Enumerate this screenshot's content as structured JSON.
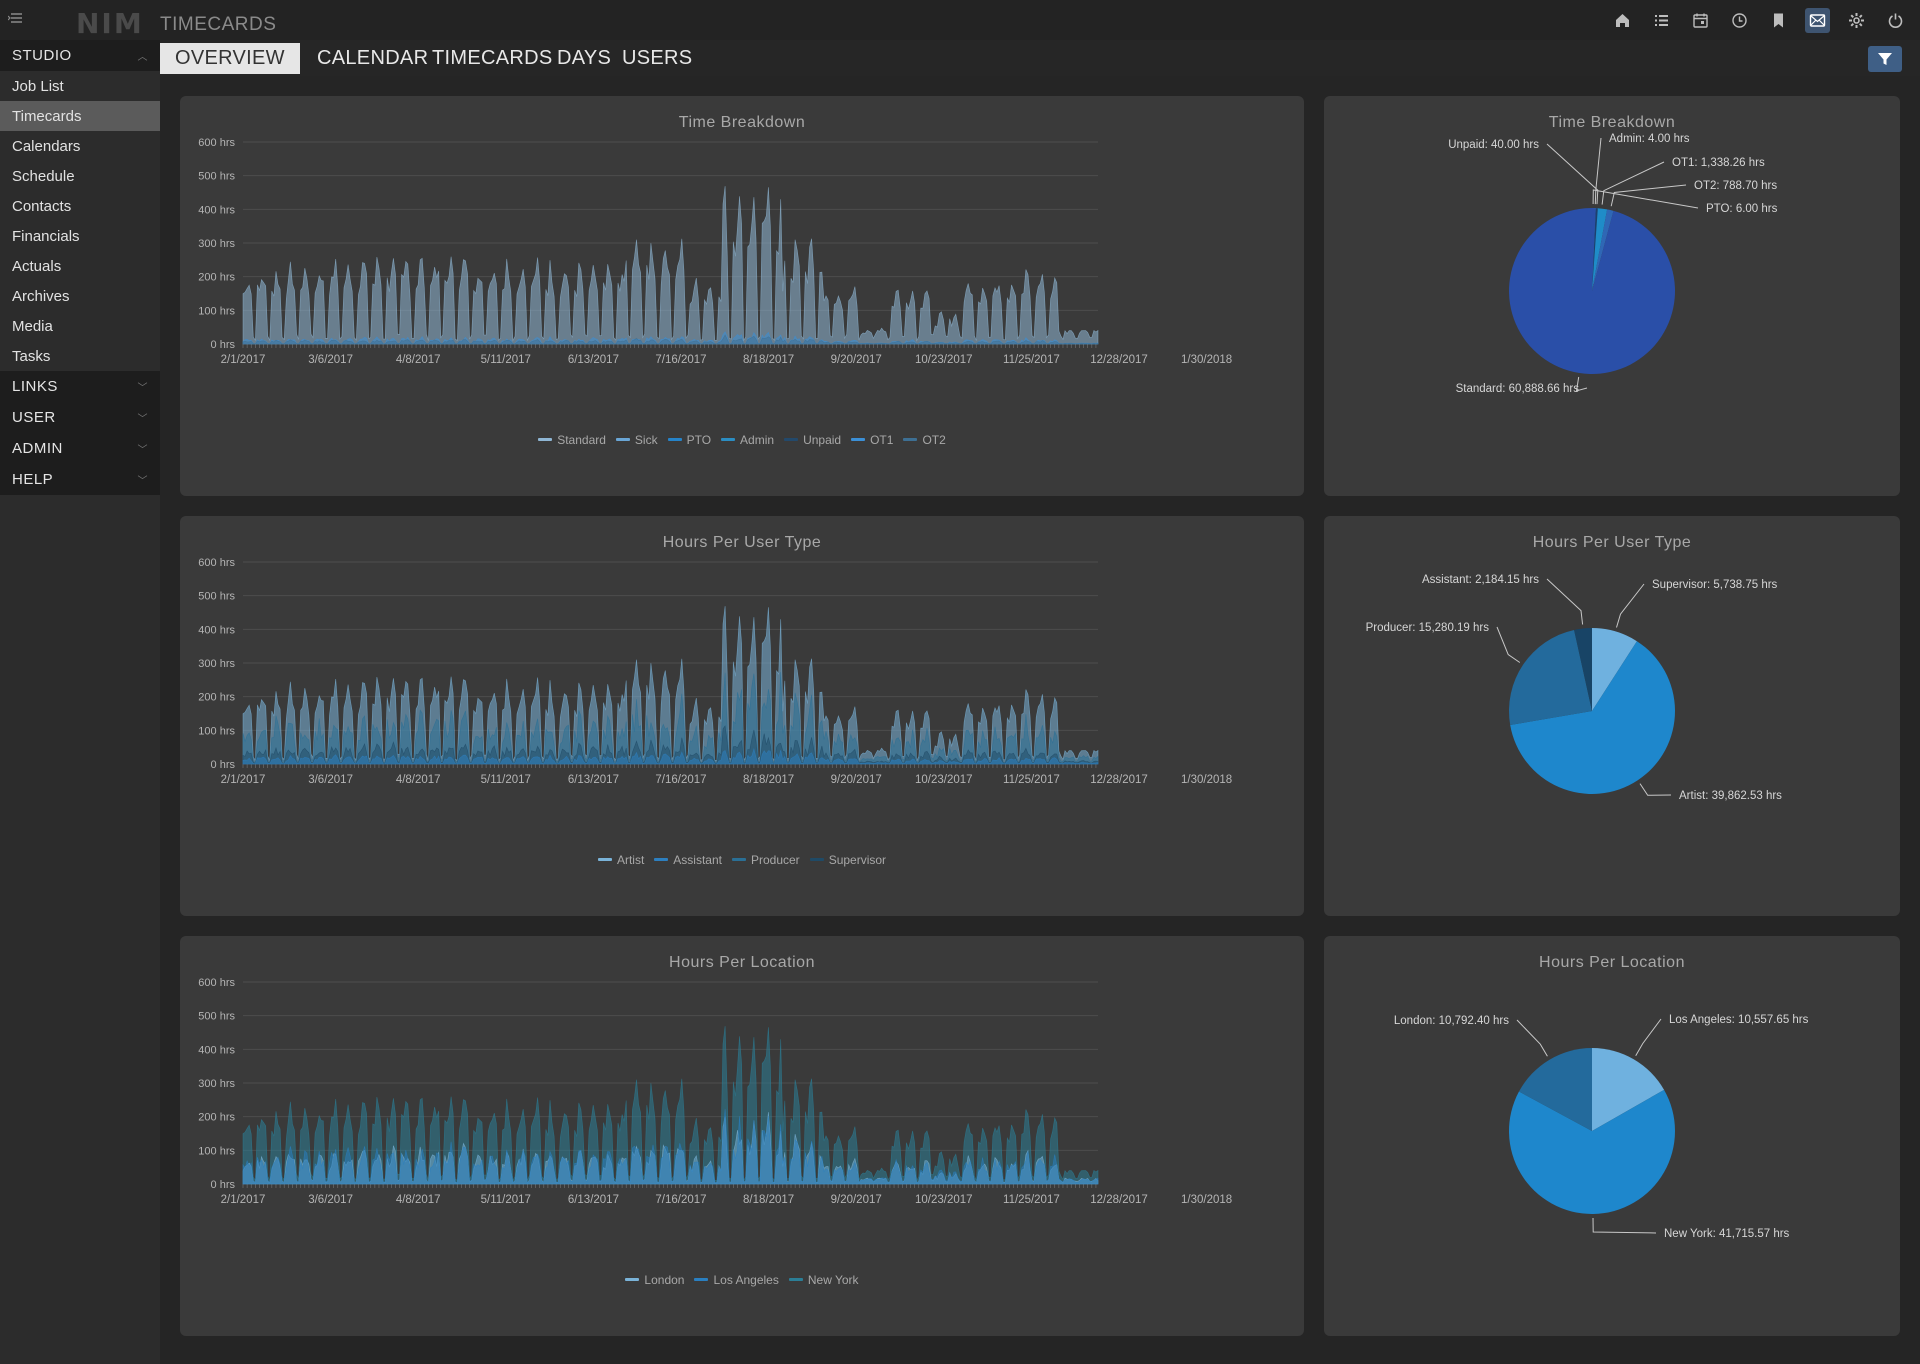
{
  "app": {
    "logo": "NIM",
    "title": "TIMECARDS",
    "menu_icon": "menu-icon"
  },
  "top_icons": [
    {
      "name": "home-icon",
      "active": false
    },
    {
      "name": "list-icon",
      "active": false
    },
    {
      "name": "calendar-icon",
      "active": false
    },
    {
      "name": "clock-icon",
      "active": false
    },
    {
      "name": "bookmark-icon",
      "active": false
    },
    {
      "name": "mail-icon",
      "active": true
    },
    {
      "name": "gear-icon",
      "active": false
    },
    {
      "name": "power-icon",
      "active": false
    }
  ],
  "sidebar": {
    "studio_label": "STUDIO",
    "items": [
      {
        "label": "Job List",
        "active": false
      },
      {
        "label": "Timecards",
        "active": true
      },
      {
        "label": "Calendars",
        "active": false
      },
      {
        "label": "Schedule",
        "active": false
      },
      {
        "label": "Contacts",
        "active": false
      },
      {
        "label": "Financials",
        "active": false
      },
      {
        "label": "Actuals",
        "active": false
      },
      {
        "label": "Archives",
        "active": false
      },
      {
        "label": "Media",
        "active": false
      },
      {
        "label": "Tasks",
        "active": false
      }
    ],
    "sections": [
      {
        "label": "LINKS"
      },
      {
        "label": "USER"
      },
      {
        "label": "ADMIN"
      },
      {
        "label": "HELP"
      }
    ]
  },
  "tabs": [
    {
      "label": "OVERVIEW",
      "active": true
    },
    {
      "label": "CALENDAR",
      "active": false
    },
    {
      "label": "TIMECARDS",
      "active": false
    },
    {
      "label": "DAYS",
      "active": false
    },
    {
      "label": "USERS",
      "active": false
    }
  ],
  "filter_icon": "filter-icon",
  "chart_data": [
    {
      "type": "area",
      "title": "Time Breakdown",
      "x_ticks": [
        "2/1/2017",
        "3/6/2017",
        "4/8/2017",
        "5/11/2017",
        "6/13/2017",
        "7/16/2017",
        "8/18/2017",
        "9/20/2017",
        "10/23/2017",
        "11/25/2017",
        "12/28/2017",
        "1/30/2018"
      ],
      "y_ticks": [
        "600 hrs",
        "500 hrs",
        "400 hrs",
        "300 hrs",
        "200 hrs",
        "100 hrs",
        "0 hrs"
      ],
      "ylim": [
        0,
        600
      ],
      "grid": true,
      "legend_position": "bottom",
      "series": [
        {
          "name": "Standard",
          "color": "#8fb6d4",
          "share": 0.95
        },
        {
          "name": "Sick",
          "color": "#6aa6d6",
          "share": 0.0
        },
        {
          "name": "PTO",
          "color": "#2583c9",
          "share": 0.0
        },
        {
          "name": "Admin",
          "color": "#2b8dc2",
          "share": 0.0
        },
        {
          "name": "Unpaid",
          "color": "#23496b",
          "share": 0.0
        },
        {
          "name": "OT1",
          "color": "#3b8fd6",
          "share": 0.03
        },
        {
          "name": "OT2",
          "color": "#3d6f93",
          "share": 0.02
        }
      ]
    },
    {
      "type": "area",
      "title": "Hours Per User Type",
      "x_ticks": [
        "2/1/2017",
        "3/6/2017",
        "4/8/2017",
        "5/11/2017",
        "6/13/2017",
        "7/16/2017",
        "8/18/2017",
        "9/20/2017",
        "10/23/2017",
        "11/25/2017",
        "12/28/2017",
        "1/30/2018"
      ],
      "y_ticks": [
        "600 hrs",
        "500 hrs",
        "400 hrs",
        "300 hrs",
        "200 hrs",
        "100 hrs",
        "0 hrs"
      ],
      "ylim": [
        0,
        600
      ],
      "grid": true,
      "legend_position": "bottom",
      "series": [
        {
          "name": "Artist",
          "color": "#7ab3d8",
          "share": 0.63
        },
        {
          "name": "Assistant",
          "color": "#2d7fbf",
          "share": 0.04
        },
        {
          "name": "Producer",
          "color": "#2a6f95",
          "share": 0.24
        },
        {
          "name": "Supervisor",
          "color": "#1f4a66",
          "share": 0.09
        }
      ]
    },
    {
      "type": "area",
      "title": "Hours Per Location",
      "x_ticks": [
        "2/1/2017",
        "3/6/2017",
        "4/8/2017",
        "5/11/2017",
        "6/13/2017",
        "7/16/2017",
        "8/18/2017",
        "9/20/2017",
        "10/23/2017",
        "11/25/2017",
        "12/28/2017",
        "1/30/2018"
      ],
      "y_ticks": [
        "600 hrs",
        "500 hrs",
        "400 hrs",
        "300 hrs",
        "200 hrs",
        "100 hrs",
        "0 hrs"
      ],
      "ylim": [
        0,
        600
      ],
      "grid": true,
      "legend_position": "bottom",
      "series": [
        {
          "name": "London",
          "color": "#7ab3d8",
          "share": 0.17
        },
        {
          "name": "Los Angeles",
          "color": "#2a7fc0",
          "share": 0.17
        },
        {
          "name": "New York",
          "color": "#2b7e96",
          "share": 0.66
        }
      ]
    },
    {
      "type": "pie",
      "title": "Time Breakdown",
      "slices": [
        {
          "label": "Standard: 60,888.66 hrs",
          "value": 60888.66,
          "color": "#2a4fa8"
        },
        {
          "label": "Unpaid: 40.00 hrs",
          "value": 40.0,
          "color": "#1e3f6e"
        },
        {
          "label": "Admin: 4.00 hrs",
          "value": 4.0,
          "color": "#2b8dc2"
        },
        {
          "label": "OT1: 1,338.26 hrs",
          "value": 1338.26,
          "color": "#1f8cc8"
        },
        {
          "label": "OT2: 788.70 hrs",
          "value": 788.7,
          "color": "#2f67b5"
        },
        {
          "label": "PTO: 6.00 hrs",
          "value": 6.0,
          "color": "#3a7fd0"
        }
      ]
    },
    {
      "type": "pie",
      "title": "Hours Per User Type",
      "slices": [
        {
          "label": "Supervisor: 5,738.75 hrs",
          "value": 5738.75,
          "color": "#6fb1df"
        },
        {
          "label": "Artist: 39,862.53 hrs",
          "value": 39862.53,
          "color": "#1e87cc"
        },
        {
          "label": "Producer: 15,280.19 hrs",
          "value": 15280.19,
          "color": "#236a9c"
        },
        {
          "label": "Assistant: 2,184.15 hrs",
          "value": 2184.15,
          "color": "#184466"
        }
      ]
    },
    {
      "type": "pie",
      "title": "Hours Per Location",
      "slices": [
        {
          "label": "Los Angeles: 10,557.65 hrs",
          "value": 10557.65,
          "color": "#6fb1df"
        },
        {
          "label": "New York: 41,715.57 hrs",
          "value": 41715.57,
          "color": "#1e87cc"
        },
        {
          "label": "London: 10,792.40 hrs",
          "value": 10792.4,
          "color": "#236a9c"
        }
      ]
    }
  ]
}
